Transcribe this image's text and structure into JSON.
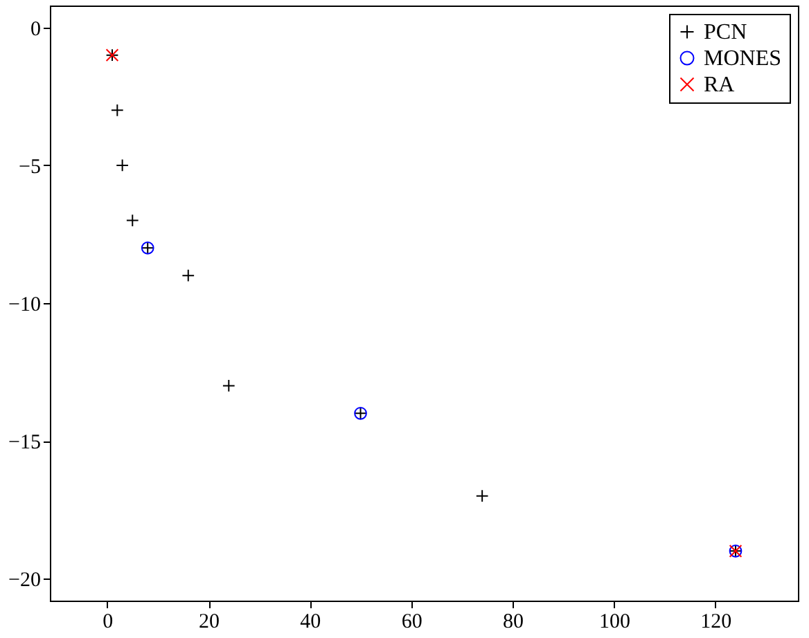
{
  "chart_data": {
    "type": "scatter",
    "xlim": [
      -11.3,
      136.3
    ],
    "xticks": [
      0,
      20,
      40,
      60,
      80,
      100,
      120
    ],
    "ylim": [
      -20.8,
      0.8
    ],
    "yticks": [
      0,
      -5,
      -10,
      -15,
      -20
    ],
    "grid": false,
    "legend": "top right",
    "series": [
      {
        "name": "PCN",
        "color": "#000000",
        "marker": "cross",
        "x": [
          1,
          2,
          3,
          5,
          8,
          16,
          24,
          50,
          74,
          124
        ],
        "values": [
          -1,
          -3,
          -5,
          -7,
          -8,
          -9,
          -13,
          -14,
          -17,
          -19
        ]
      },
      {
        "name": "MONES",
        "color": "#0000ff",
        "marker": "circle",
        "x": [
          8,
          50,
          124
        ],
        "values": [
          -8,
          -14,
          -19
        ]
      },
      {
        "name": "RA",
        "color": "#ff0000",
        "marker": "x",
        "x": [
          1,
          124
        ],
        "values": [
          -1,
          -19
        ]
      }
    ]
  }
}
